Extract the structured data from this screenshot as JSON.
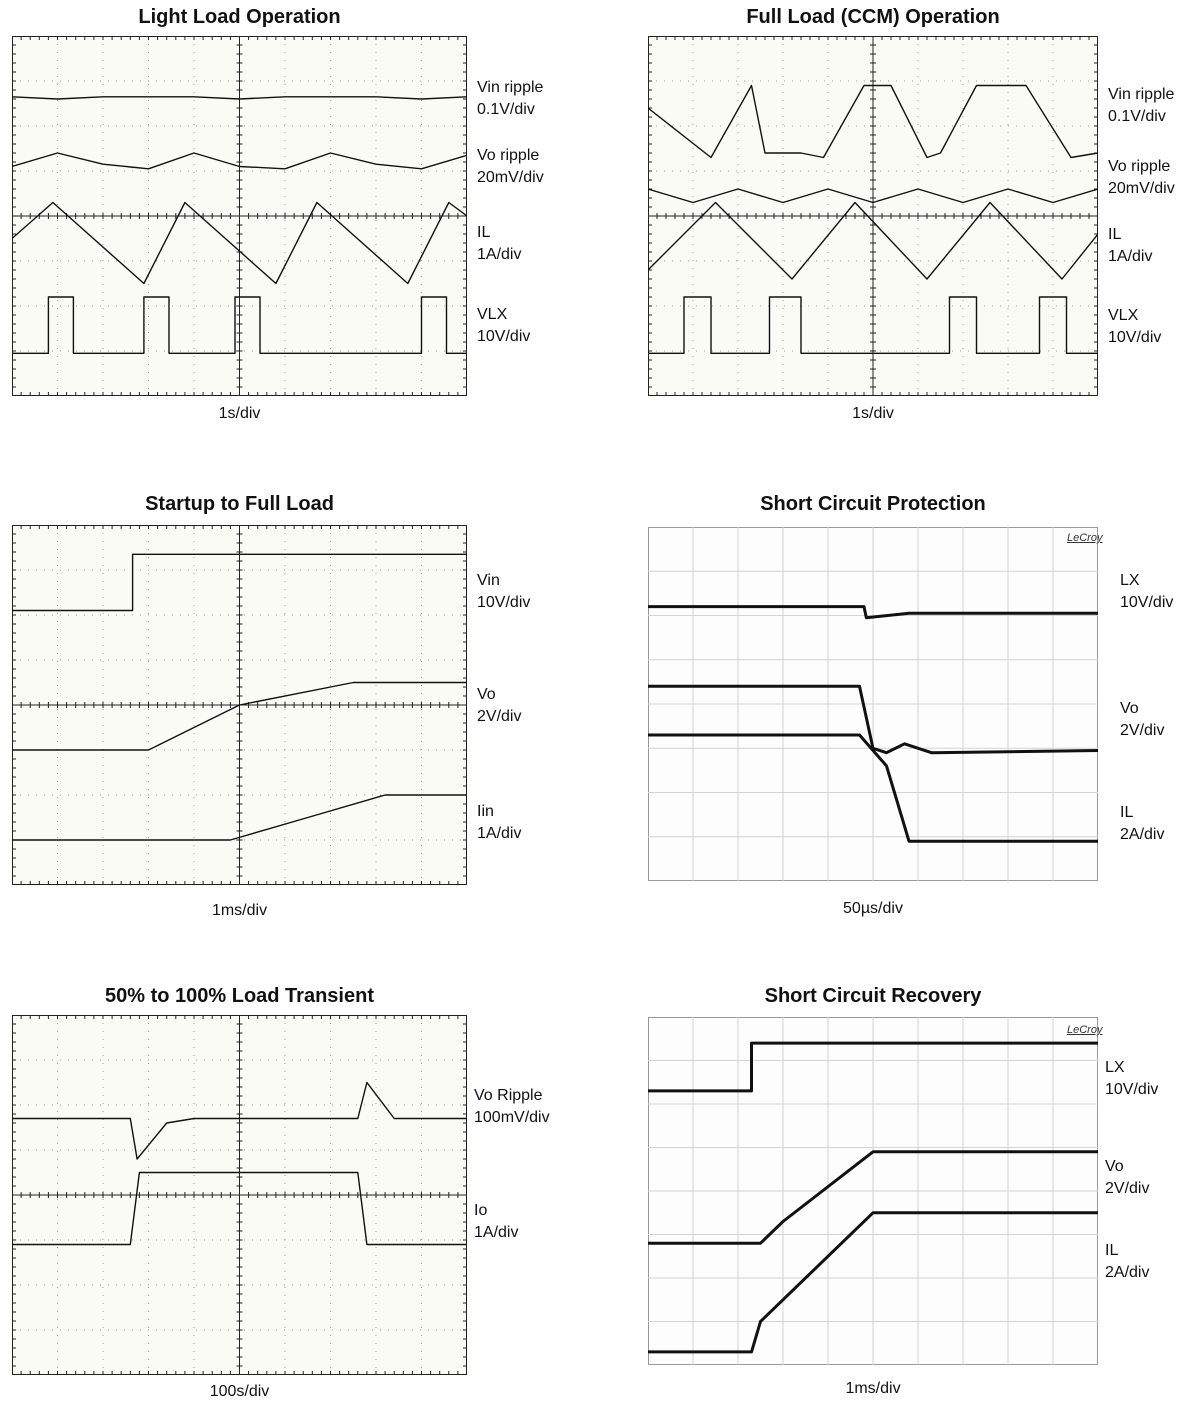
{
  "panels": [
    {
      "title": "Light Load Operation",
      "xlabel": "1s/div",
      "style": "tek",
      "brand": "",
      "traces": [
        {
          "name": "Vin ripple",
          "scale": "0.1V/div"
        },
        {
          "name": "Vo ripple",
          "scale": "20mV/div"
        },
        {
          "name": "IL",
          "scale": "1A/div"
        },
        {
          "name": "VLX",
          "scale": "10V/div"
        }
      ]
    },
    {
      "title": "Full Load (CCM) Operation",
      "xlabel": "1s/div",
      "style": "tek",
      "brand": "",
      "traces": [
        {
          "name": "Vin ripple",
          "scale": "0.1V/div"
        },
        {
          "name": "Vo ripple",
          "scale": "20mV/div"
        },
        {
          "name": "IL",
          "scale": "1A/div"
        },
        {
          "name": "VLX",
          "scale": "10V/div"
        }
      ]
    },
    {
      "title": "Startup to Full Load",
      "xlabel": "1ms/div",
      "style": "tek",
      "brand": "",
      "traces": [
        {
          "name": "Vin",
          "scale": "10V/div"
        },
        {
          "name": "Vo",
          "scale": "2V/div"
        },
        {
          "name": "Iin",
          "scale": "1A/div"
        }
      ]
    },
    {
      "title": "Short Circuit Protection",
      "xlabel": "50µs/div",
      "style": "lecroy",
      "brand": "LeCroy",
      "traces": [
        {
          "name": "LX",
          "scale": "10V/div"
        },
        {
          "name": "Vo",
          "scale": "2V/div"
        },
        {
          "name": "IL",
          "scale": "2A/div"
        }
      ]
    },
    {
      "title": "50% to 100% Load Transient",
      "xlabel": "100s/div",
      "style": "tek",
      "brand": "",
      "traces": [
        {
          "name": "Vo Ripple",
          "scale": "100mV/div"
        },
        {
          "name": "Io",
          "scale": "1A/div"
        }
      ]
    },
    {
      "title": "Short Circuit Recovery",
      "xlabel": "1ms/div",
      "style": "lecroy",
      "brand": "LeCroy",
      "traces": [
        {
          "name": "LX",
          "scale": "10V/div"
        },
        {
          "name": "Vo",
          "scale": "2V/div"
        },
        {
          "name": "IL",
          "scale": "2A/div"
        }
      ]
    }
  ],
  "chart_data": [
    {
      "type": "line",
      "title": "Light Load Operation",
      "xlabel": "1s/div",
      "xlim": [
        0,
        10
      ],
      "ylim": [
        0,
        8
      ],
      "series": [
        {
          "name": "Vin ripple",
          "x": [
            0,
            1,
            2,
            3,
            4,
            5,
            6,
            7,
            8,
            9,
            10
          ],
          "values": [
            6.65,
            6.6,
            6.65,
            6.65,
            6.65,
            6.6,
            6.65,
            6.65,
            6.65,
            6.6,
            6.65
          ]
        },
        {
          "name": "Vo ripple",
          "x": [
            0,
            1,
            2,
            3,
            4,
            5,
            6,
            7,
            8,
            9,
            10
          ],
          "values": [
            5.1,
            5.4,
            5.15,
            5.05,
            5.4,
            5.1,
            5.05,
            5.4,
            5.15,
            5.05,
            5.35
          ]
        },
        {
          "name": "IL",
          "x": [
            0,
            0.9,
            2.9,
            3.8,
            5.8,
            6.7,
            8.7,
            9.6,
            10
          ],
          "values": [
            3.5,
            4.3,
            2.5,
            4.3,
            2.5,
            4.3,
            2.5,
            4.3,
            4.0
          ]
        },
        {
          "name": "VLX",
          "x": [
            0,
            0.8,
            0.8,
            1.35,
            1.35,
            2.9,
            2.9,
            3.45,
            3.45,
            4.9,
            4.9,
            5.45,
            5.45,
            9.0,
            9.0,
            9.55,
            9.55,
            10
          ],
          "values": [
            0.95,
            0.95,
            2.2,
            2.2,
            0.95,
            0.95,
            2.2,
            2.2,
            0.95,
            0.95,
            2.2,
            2.2,
            0.95,
            0.95,
            2.2,
            2.2,
            0.95,
            0.95
          ]
        }
      ]
    },
    {
      "type": "line",
      "title": "Full Load (CCM) Operation",
      "xlabel": "1s/div",
      "xlim": [
        0,
        10
      ],
      "ylim": [
        0,
        8
      ],
      "series": [
        {
          "name": "Vin ripple",
          "x": [
            0,
            1.4,
            2.3,
            2.6,
            3.4,
            3.9,
            4.8,
            5.4,
            6.2,
            6.5,
            7.3,
            8.4,
            9.4,
            10
          ],
          "values": [
            6.4,
            5.3,
            6.9,
            5.4,
            5.4,
            5.3,
            6.9,
            6.9,
            5.3,
            5.4,
            6.9,
            6.9,
            5.3,
            5.4
          ]
        },
        {
          "name": "Vo ripple",
          "x": [
            0,
            1,
            2,
            3,
            4,
            5,
            6,
            7,
            8,
            9,
            10
          ],
          "values": [
            4.6,
            4.3,
            4.6,
            4.3,
            4.6,
            4.3,
            4.6,
            4.3,
            4.6,
            4.3,
            4.6
          ]
        },
        {
          "name": "IL",
          "x": [
            0,
            1.5,
            3.2,
            4.6,
            6.2,
            7.6,
            9.2,
            10
          ],
          "values": [
            2.8,
            4.3,
            2.6,
            4.3,
            2.6,
            4.3,
            2.6,
            3.6
          ]
        },
        {
          "name": "VLX",
          "x": [
            0,
            0.8,
            0.8,
            1.4,
            1.4,
            2.7,
            2.7,
            3.4,
            3.4,
            6.7,
            6.7,
            7.3,
            7.3,
            8.7,
            8.7,
            9.3,
            9.3,
            10
          ],
          "values": [
            0.95,
            0.95,
            2.2,
            2.2,
            0.95,
            0.95,
            2.2,
            2.2,
            0.95,
            0.95,
            2.2,
            2.2,
            0.95,
            0.95,
            2.2,
            2.2,
            0.95,
            0.95
          ]
        }
      ]
    },
    {
      "type": "line",
      "title": "Startup to Full Load",
      "xlabel": "1ms/div",
      "xlim": [
        0,
        10
      ],
      "ylim": [
        0,
        8
      ],
      "series": [
        {
          "name": "Vin",
          "x": [
            0,
            2.65,
            2.65,
            10
          ],
          "values": [
            6.1,
            6.1,
            7.35,
            7.35
          ]
        },
        {
          "name": "Vo",
          "x": [
            0,
            3.0,
            5.0,
            7.5,
            10
          ],
          "values": [
            3.0,
            3.0,
            4.0,
            4.5,
            4.5
          ]
        },
        {
          "name": "Iin",
          "x": [
            0,
            4.8,
            6.5,
            8.2,
            10
          ],
          "values": [
            1.0,
            1.0,
            1.5,
            2.0,
            2.0
          ]
        }
      ]
    },
    {
      "type": "line",
      "title": "Short Circuit Protection",
      "xlabel": "50µs/div",
      "xlim": [
        0,
        10
      ],
      "ylim": [
        0,
        8
      ],
      "series": [
        {
          "name": "LX",
          "x": [
            0,
            4.8,
            4.85,
            5.8,
            10
          ],
          "values": [
            6.2,
            6.2,
            5.95,
            6.05,
            6.05
          ]
        },
        {
          "name": "Vo",
          "x": [
            0,
            4.7,
            5.0,
            5.3,
            5.7,
            6.3,
            10
          ],
          "values": [
            4.4,
            4.4,
            3.0,
            2.9,
            3.1,
            2.9,
            2.95
          ]
        },
        {
          "name": "IL",
          "x": [
            0,
            4.7,
            5.3,
            5.8,
            10
          ],
          "values": [
            3.3,
            3.3,
            2.6,
            0.9,
            0.9
          ]
        }
      ]
    },
    {
      "type": "line",
      "title": "50% to 100% Load Transient",
      "xlabel": "100s/div",
      "xlim": [
        0,
        10
      ],
      "ylim": [
        0,
        8
      ],
      "series": [
        {
          "name": "Vo Ripple",
          "x": [
            0,
            2.6,
            2.75,
            3.4,
            4.0,
            7.6,
            7.8,
            8.4,
            10
          ],
          "values": [
            5.7,
            5.7,
            4.8,
            5.6,
            5.7,
            5.7,
            6.5,
            5.7,
            5.7
          ]
        },
        {
          "name": "Io",
          "x": [
            0,
            2.6,
            2.8,
            7.6,
            7.8,
            10
          ],
          "values": [
            2.9,
            2.9,
            4.5,
            4.5,
            2.9,
            2.9
          ]
        }
      ]
    },
    {
      "type": "line",
      "title": "Short Circuit Recovery",
      "xlabel": "1ms/div",
      "xlim": [
        0,
        10
      ],
      "ylim": [
        0,
        8
      ],
      "series": [
        {
          "name": "LX",
          "x": [
            0,
            2.3,
            2.3,
            10
          ],
          "values": [
            6.3,
            6.3,
            7.4,
            7.4
          ]
        },
        {
          "name": "Vo",
          "x": [
            0,
            2.5,
            3.0,
            5.0,
            10
          ],
          "values": [
            2.8,
            2.8,
            3.3,
            4.9,
            4.9
          ]
        },
        {
          "name": "IL",
          "x": [
            0,
            2.3,
            2.5,
            5.0,
            10
          ],
          "values": [
            0.3,
            0.3,
            1.0,
            3.5,
            3.5
          ]
        }
      ]
    }
  ]
}
